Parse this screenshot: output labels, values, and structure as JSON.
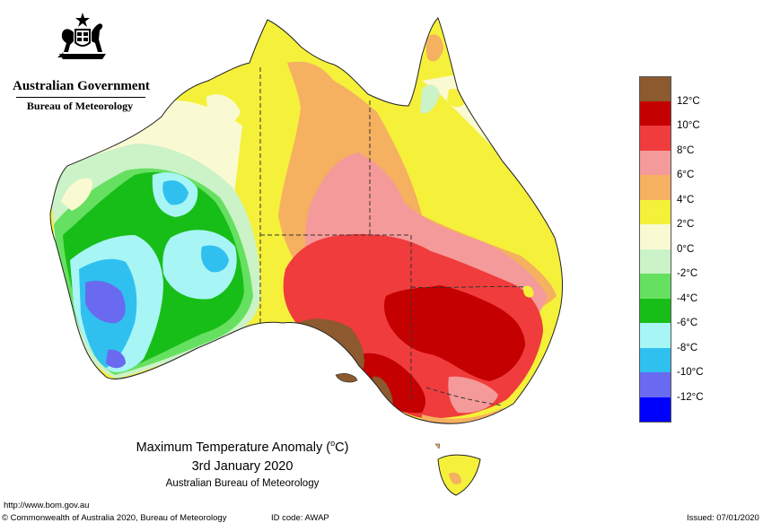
{
  "header": {
    "government": "Australian Government",
    "bureau": "Bureau of Meteorology"
  },
  "map": {
    "title": "Maximum Temperature Anomaly (°C)",
    "title_prefix": "Maximum Temperature Anomaly (",
    "title_unit_sup": "o",
    "title_unit": "C)",
    "date": "3rd January 2020",
    "source": "Australian Bureau of Meteorology"
  },
  "legend": {
    "unit": "°C",
    "bins": [
      {
        "label": "12°C",
        "color": "#8c5a2e"
      },
      {
        "label": "10°C",
        "color": "#c40000"
      },
      {
        "label": "8°C",
        "color": "#f03c3c"
      },
      {
        "label": "6°C",
        "color": "#f59a9a"
      },
      {
        "label": "4°C",
        "color": "#f5b060"
      },
      {
        "label": "2°C",
        "color": "#f5f03a"
      },
      {
        "label": "0°C",
        "color": "#fafad2"
      },
      {
        "label": "-2°C",
        "color": "#ccf2c8"
      },
      {
        "label": "-4°C",
        "color": "#66e060"
      },
      {
        "label": "-6°C",
        "color": "#18be18"
      },
      {
        "label": "-8°C",
        "color": "#a8f5f5"
      },
      {
        "label": "-10°C",
        "color": "#30c0f0"
      },
      {
        "label": "-12°C",
        "color": "#6a6af0"
      },
      {
        "label": "",
        "color": "#0000ff"
      }
    ]
  },
  "footer": {
    "url": "http://www.bom.gov.au",
    "copyright": "© Commonwealth of Australia 2020, Bureau of Meteorology",
    "id_code": "ID code: AWAP",
    "issued": "Issued: 07/01/2020"
  }
}
